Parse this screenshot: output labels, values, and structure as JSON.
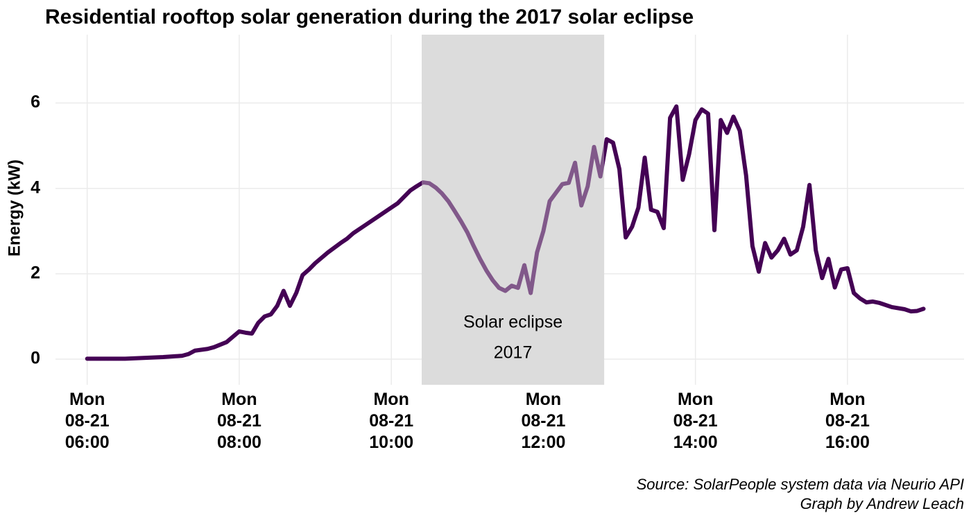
{
  "chart_data": {
    "type": "line",
    "title": "Residential rooftop solar generation during the 2017 solar eclipse",
    "y_label": "Energy (kW)",
    "caption": [
      "Source: SolarPeople system data via Neurio API",
      "Graph by Andrew Leach"
    ],
    "annotation": {
      "start": "08-21 10:24",
      "end": "08-21 12:48",
      "text": [
        "Solar eclipse",
        "2017"
      ]
    },
    "color": "#440154",
    "grid": true,
    "xlim": [
      "08-21 05:35",
      "08-21 17:32"
    ],
    "ylim": [
      -0.6,
      7.6
    ],
    "yticks": [
      0,
      2,
      4,
      6
    ],
    "xticks": [
      {
        "value": "08-21 06:00",
        "label": "Mon 08-21 06:00"
      },
      {
        "value": "08-21 08:00",
        "label": "Mon 08-21 08:00"
      },
      {
        "value": "08-21 10:00",
        "label": "Mon 08-21 10:00"
      },
      {
        "value": "08-21 12:00",
        "label": "Mon 08-21 12:00"
      },
      {
        "value": "08-21 14:00",
        "label": "Mon 08-21 14:00"
      },
      {
        "value": "08-21 16:00",
        "label": "Mon 08-21 16:00"
      }
    ],
    "x": [
      "08-21 06:00",
      "08-21 06:30",
      "08-21 07:00",
      "08-21 07:15",
      "08-21 07:20",
      "08-21 07:25",
      "08-21 07:35",
      "08-21 07:40",
      "08-21 07:50",
      "08-21 08:00",
      "08-21 08:05",
      "08-21 08:10",
      "08-21 08:15",
      "08-21 08:20",
      "08-21 08:25",
      "08-21 08:30",
      "08-21 08:35",
      "08-21 08:40",
      "08-21 08:45",
      "08-21 08:50",
      "08-21 08:55",
      "08-21 09:00",
      "08-21 09:10",
      "08-21 09:20",
      "08-21 09:25",
      "08-21 09:30",
      "08-21 09:40",
      "08-21 09:50",
      "08-21 10:00",
      "08-21 10:05",
      "08-21 10:10",
      "08-21 10:15",
      "08-21 10:20",
      "08-21 10:25",
      "08-21 10:30",
      "08-21 10:35",
      "08-21 10:40",
      "08-21 10:45",
      "08-21 10:50",
      "08-21 10:55",
      "08-21 11:00",
      "08-21 11:05",
      "08-21 11:10",
      "08-21 11:15",
      "08-21 11:20",
      "08-21 11:25",
      "08-21 11:30",
      "08-21 11:35",
      "08-21 11:40",
      "08-21 11:45",
      "08-21 11:50",
      "08-21 11:55",
      "08-21 12:00",
      "08-21 12:05",
      "08-21 12:10",
      "08-21 12:15",
      "08-21 12:20",
      "08-21 12:25",
      "08-21 12:30",
      "08-21 12:35",
      "08-21 12:40",
      "08-21 12:45",
      "08-21 12:50",
      "08-21 12:55",
      "08-21 13:00",
      "08-21 13:05",
      "08-21 13:10",
      "08-21 13:15",
      "08-21 13:20",
      "08-21 13:25",
      "08-21 13:30",
      "08-21 13:35",
      "08-21 13:40",
      "08-21 13:45",
      "08-21 13:50",
      "08-21 13:55",
      "08-21 14:00",
      "08-21 14:05",
      "08-21 14:10",
      "08-21 14:15",
      "08-21 14:20",
      "08-21 14:25",
      "08-21 14:30",
      "08-21 14:35",
      "08-21 14:40",
      "08-21 14:45",
      "08-21 14:50",
      "08-21 14:55",
      "08-21 15:00",
      "08-21 15:05",
      "08-21 15:10",
      "08-21 15:15",
      "08-21 15:20",
      "08-21 15:25",
      "08-21 15:30",
      "08-21 15:35",
      "08-21 15:40",
      "08-21 15:45",
      "08-21 15:50",
      "08-21 15:55",
      "08-21 16:00",
      "08-21 16:05",
      "08-21 16:10",
      "08-21 16:15",
      "08-21 16:20",
      "08-21 16:25",
      "08-21 16:35",
      "08-21 16:45",
      "08-21 16:50",
      "08-21 16:55",
      "08-21 17:00"
    ],
    "values": [
      0.01,
      0.01,
      0.05,
      0.08,
      0.12,
      0.2,
      0.24,
      0.28,
      0.4,
      0.65,
      0.62,
      0.6,
      0.85,
      1.0,
      1.05,
      1.25,
      1.6,
      1.25,
      1.55,
      1.97,
      2.1,
      2.25,
      2.5,
      2.72,
      2.82,
      2.95,
      3.15,
      3.35,
      3.55,
      3.65,
      3.8,
      3.95,
      4.05,
      4.14,
      4.12,
      4.02,
      3.88,
      3.7,
      3.47,
      3.23,
      2.97,
      2.65,
      2.35,
      2.08,
      1.85,
      1.67,
      1.6,
      1.72,
      1.67,
      2.2,
      1.55,
      2.5,
      3.0,
      3.7,
      3.9,
      4.1,
      4.13,
      4.6,
      3.6,
      4.05,
      4.97,
      4.28,
      5.15,
      5.07,
      4.45,
      2.85,
      3.1,
      3.55,
      4.72,
      3.5,
      3.45,
      3.07,
      5.65,
      5.92,
      4.2,
      4.8,
      5.6,
      5.85,
      5.75,
      3.02,
      5.6,
      5.3,
      5.68,
      5.35,
      4.3,
      2.65,
      2.05,
      2.72,
      2.38,
      2.55,
      2.82,
      2.45,
      2.55,
      3.1,
      4.08,
      2.55,
      1.9,
      2.35,
      1.68,
      2.1,
      2.13,
      1.55,
      1.42,
      1.33,
      1.35,
      1.32,
      1.22,
      1.17,
      1.12,
      1.13,
      1.18
    ]
  }
}
